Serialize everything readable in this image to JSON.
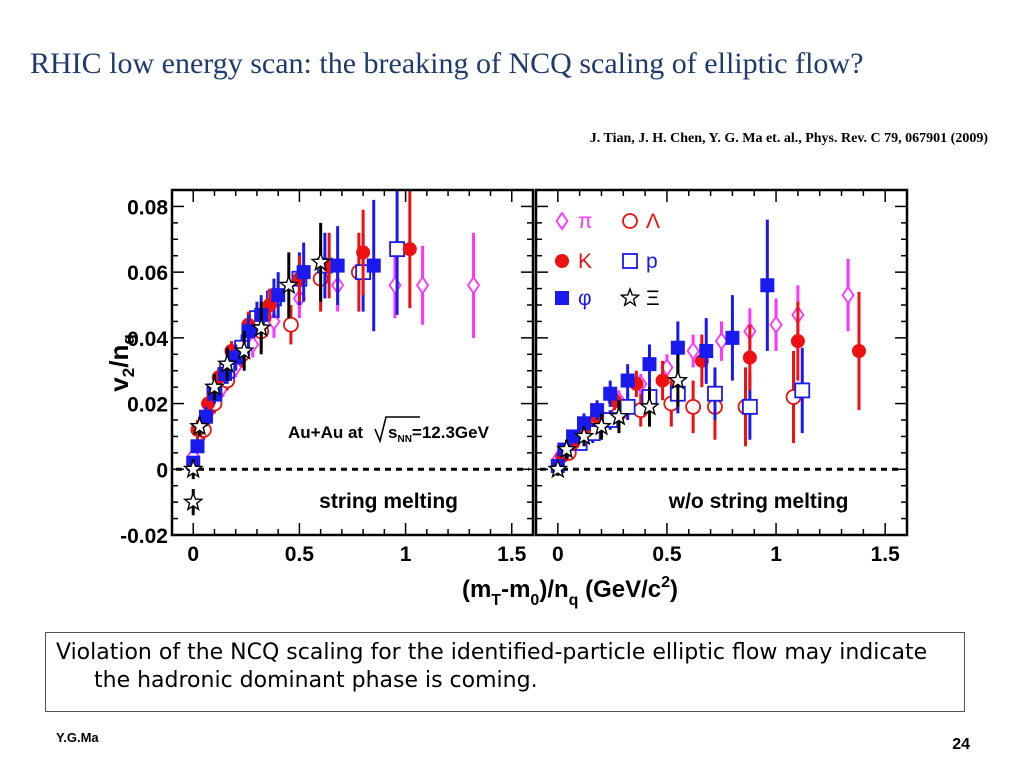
{
  "slide": {
    "title": "RHIC low energy scan: the breaking of  NCQ scaling of  elliptic flow?",
    "citation": "J. Tian, J. H. Chen, Y. G. Ma et. al., Phys. Rev. C 79, 067901 (2009)",
    "caption": "Violation of the NCQ scaling for the identified-particle elliptic flow may indicate the hadronic dominant phase is coming.",
    "author": "Y.G.Ma",
    "page_number": "24"
  },
  "colors": {
    "pi": "#ff33ff",
    "K": "#ee1111",
    "phi": "#1a1aee",
    "Lambda": "#ee1111",
    "p": "#1a1aee",
    "Xi": "#000000"
  },
  "chart_data": {
    "type": "scatter",
    "ylabel": "v2/nq",
    "xlabel": "(mT-m0)/nq  (GeV/c2)",
    "xlim": [
      -0.1,
      1.6
    ],
    "ylim": [
      -0.02,
      0.085
    ],
    "x_ticks": [
      "0",
      "0.5",
      "1",
      "1.5"
    ],
    "y_ticks": [
      "-0.02",
      "0",
      "0.02",
      "0.04",
      "0.06",
      "0.08"
    ],
    "annotation": "Au+Au at √sNN=12.3GeV",
    "legend": [
      {
        "id": "pi",
        "label": "π"
      },
      {
        "id": "Lambda",
        "label": "Λ"
      },
      {
        "id": "K",
        "label": "K"
      },
      {
        "id": "p",
        "label": "p"
      },
      {
        "id": "phi",
        "label": "φ"
      },
      {
        "id": "Xi",
        "label": "Ξ"
      }
    ],
    "panels": [
      {
        "label": "string melting",
        "series": [
          {
            "id": "pi",
            "points": [
              [
                0.0,
                0.004,
                0.002
              ],
              [
                0.04,
                0.012,
                0.002
              ],
              [
                0.08,
                0.018,
                0.003
              ],
              [
                0.14,
                0.025,
                0.003
              ],
              [
                0.2,
                0.031,
                0.003
              ],
              [
                0.28,
                0.038,
                0.004
              ],
              [
                0.38,
                0.045,
                0.005
              ],
              [
                0.5,
                0.052,
                0.006
              ],
              [
                0.68,
                0.056,
                0.008
              ],
              [
                0.95,
                0.056,
                0.01
              ],
              [
                1.08,
                0.056,
                0.012
              ],
              [
                1.32,
                0.056,
                0.016
              ]
            ]
          },
          {
            "id": "K",
            "points": [
              [
                0.02,
                0.012,
                0.003
              ],
              [
                0.07,
                0.02,
                0.003
              ],
              [
                0.12,
                0.028,
                0.003
              ],
              [
                0.18,
                0.036,
                0.003
              ],
              [
                0.26,
                0.044,
                0.004
              ],
              [
                0.36,
                0.05,
                0.005
              ],
              [
                0.5,
                0.058,
                0.007
              ],
              [
                0.64,
                0.062,
                0.01
              ],
              [
                0.8,
                0.066,
                0.013
              ],
              [
                1.02,
                0.067,
                0.018
              ]
            ]
          },
          {
            "id": "phi",
            "points": [
              [
                0.0,
                0.002,
                0.002
              ],
              [
                0.02,
                0.007,
                0.002
              ],
              [
                0.06,
                0.016,
                0.003
              ],
              [
                0.1,
                0.023,
                0.003
              ],
              [
                0.15,
                0.029,
                0.003
              ],
              [
                0.2,
                0.034,
                0.004
              ],
              [
                0.26,
                0.042,
                0.005
              ],
              [
                0.32,
                0.047,
                0.006
              ],
              [
                0.4,
                0.053,
                0.007
              ],
              [
                0.52,
                0.06,
                0.009
              ],
              [
                0.68,
                0.062,
                0.012
              ],
              [
                0.85,
                0.062,
                0.02
              ]
            ]
          },
          {
            "id": "Lambda",
            "points": [
              [
                0.05,
                0.012,
                0.003
              ],
              [
                0.1,
                0.02,
                0.003
              ],
              [
                0.16,
                0.027,
                0.003
              ],
              [
                0.23,
                0.035,
                0.004
              ],
              [
                0.32,
                0.042,
                0.005
              ],
              [
                0.46,
                0.044,
                0.006
              ],
              [
                0.6,
                0.058,
                0.01
              ],
              [
                0.78,
                0.06,
                0.012
              ]
            ]
          },
          {
            "id": "p",
            "points": [
              [
                0.1,
                0.023,
                0.003
              ],
              [
                0.16,
                0.03,
                0.004
              ],
              [
                0.23,
                0.037,
                0.004
              ],
              [
                0.3,
                0.046,
                0.005
              ],
              [
                0.38,
                0.052,
                0.006
              ],
              [
                0.5,
                0.058,
                0.008
              ],
              [
                0.62,
                0.062,
                0.01
              ],
              [
                0.8,
                0.06,
                0.012
              ],
              [
                0.96,
                0.067,
                0.02
              ]
            ]
          },
          {
            "id": "Xi",
            "points": [
              [
                0.0,
                -0.01,
                0.004
              ],
              [
                0.0,
                0.0,
                0.003
              ],
              [
                0.03,
                0.013,
                0.003
              ],
              [
                0.1,
                0.025,
                0.004
              ],
              [
                0.16,
                0.032,
                0.005
              ],
              [
                0.24,
                0.036,
                0.006
              ],
              [
                0.32,
                0.043,
                0.008
              ],
              [
                0.45,
                0.056,
                0.01
              ],
              [
                0.6,
                0.063,
                0.012
              ]
            ]
          }
        ]
      },
      {
        "label": "w/o string melting",
        "series": [
          {
            "id": "pi",
            "points": [
              [
                0.0,
                0.003,
                0.002
              ],
              [
                0.04,
                0.006,
                0.002
              ],
              [
                0.08,
                0.009,
                0.002
              ],
              [
                0.14,
                0.012,
                0.002
              ],
              [
                0.2,
                0.016,
                0.003
              ],
              [
                0.28,
                0.021,
                0.003
              ],
              [
                0.38,
                0.026,
                0.003
              ],
              [
                0.5,
                0.031,
                0.004
              ],
              [
                0.62,
                0.036,
                0.005
              ],
              [
                0.75,
                0.039,
                0.006
              ],
              [
                0.88,
                0.042,
                0.007
              ],
              [
                1.0,
                0.044,
                0.008
              ],
              [
                1.1,
                0.047,
                0.009
              ],
              [
                1.33,
                0.053,
                0.011
              ]
            ]
          },
          {
            "id": "K",
            "points": [
              [
                0.02,
                0.004,
                0.002
              ],
              [
                0.07,
                0.008,
                0.002
              ],
              [
                0.12,
                0.012,
                0.002
              ],
              [
                0.18,
                0.016,
                0.003
              ],
              [
                0.26,
                0.021,
                0.003
              ],
              [
                0.36,
                0.026,
                0.004
              ],
              [
                0.48,
                0.027,
                0.006
              ],
              [
                0.66,
                0.033,
                0.008
              ],
              [
                0.88,
                0.034,
                0.01
              ],
              [
                1.1,
                0.039,
                0.012
              ],
              [
                1.38,
                0.036,
                0.018
              ]
            ]
          },
          {
            "id": "phi",
            "points": [
              [
                0.0,
                0.001,
                0.002
              ],
              [
                0.03,
                0.006,
                0.002
              ],
              [
                0.07,
                0.01,
                0.002
              ],
              [
                0.12,
                0.014,
                0.003
              ],
              [
                0.18,
                0.018,
                0.003
              ],
              [
                0.24,
                0.023,
                0.004
              ],
              [
                0.32,
                0.027,
                0.005
              ],
              [
                0.42,
                0.032,
                0.006
              ],
              [
                0.55,
                0.037,
                0.008
              ],
              [
                0.68,
                0.036,
                0.01
              ],
              [
                0.8,
                0.04,
                0.013
              ],
              [
                0.96,
                0.056,
                0.02
              ]
            ]
          },
          {
            "id": "Lambda",
            "points": [
              [
                0.05,
                0.005,
                0.002
              ],
              [
                0.1,
                0.009,
                0.002
              ],
              [
                0.18,
                0.013,
                0.003
              ],
              [
                0.28,
                0.017,
                0.004
              ],
              [
                0.38,
                0.018,
                0.005
              ],
              [
                0.52,
                0.02,
                0.007
              ],
              [
                0.62,
                0.019,
                0.008
              ],
              [
                0.72,
                0.019,
                0.01
              ],
              [
                0.86,
                0.019,
                0.012
              ],
              [
                1.08,
                0.022,
                0.014
              ]
            ]
          },
          {
            "id": "p",
            "points": [
              [
                0.1,
                0.008,
                0.002
              ],
              [
                0.16,
                0.011,
                0.003
              ],
              [
                0.24,
                0.015,
                0.003
              ],
              [
                0.32,
                0.019,
                0.004
              ],
              [
                0.42,
                0.022,
                0.005
              ],
              [
                0.55,
                0.023,
                0.006
              ],
              [
                0.72,
                0.023,
                0.008
              ],
              [
                0.88,
                0.019,
                0.01
              ],
              [
                1.12,
                0.024,
                0.013
              ]
            ]
          },
          {
            "id": "Xi",
            "points": [
              [
                0.0,
                0.0,
                0.002
              ],
              [
                0.04,
                0.006,
                0.003
              ],
              [
                0.12,
                0.01,
                0.003
              ],
              [
                0.2,
                0.013,
                0.004
              ],
              [
                0.28,
                0.016,
                0.005
              ],
              [
                0.42,
                0.019,
                0.006
              ],
              [
                0.55,
                0.027,
                0.008
              ]
            ]
          }
        ]
      }
    ]
  }
}
